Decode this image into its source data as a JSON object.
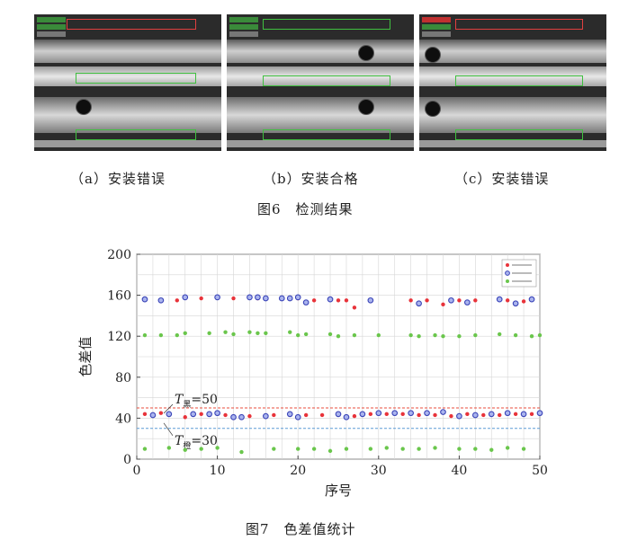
{
  "figure6": {
    "captions": [
      "（a）安装错误",
      "（b）安装合格",
      "（c）安装错误"
    ],
    "title": "图6　检测结果",
    "panels": [
      {
        "holes": [
          [
            "top",
            0
          ],
          [
            "lower",
            1
          ]
        ],
        "status": "error"
      },
      {
        "holes": [
          [
            "upper",
            1
          ],
          [
            "lower",
            1
          ]
        ],
        "status": "ok"
      },
      {
        "holes": [
          [
            "upper",
            0
          ],
          [
            "lower",
            0
          ]
        ],
        "status": "error"
      }
    ]
  },
  "chart_data": {
    "type": "scatter",
    "xlabel": "序号",
    "ylabel": "色差值",
    "xlim": [
      0,
      50
    ],
    "ylim": [
      0,
      200
    ],
    "xticks": [
      0,
      10,
      20,
      30,
      40,
      50
    ],
    "yticks": [
      0,
      40,
      80,
      120,
      160,
      200
    ],
    "grid": true,
    "legend_position": "top-right",
    "thresholds": [
      {
        "label_sym": "T",
        "label_sub": "黑",
        "label_val": "=50",
        "value": 50,
        "color": "#e84d3c"
      },
      {
        "label_sym": "T",
        "label_sub": "橙",
        "label_val": "=30",
        "value": 30,
        "color": "#5b9bd5"
      }
    ],
    "series": [
      {
        "name": "",
        "color": "#e8333a",
        "marker": "dot",
        "points": [
          [
            5,
            155
          ],
          [
            8,
            157
          ],
          [
            12,
            157
          ],
          [
            15,
            157
          ],
          [
            20,
            157
          ],
          [
            22,
            155
          ],
          [
            25,
            155
          ],
          [
            26,
            155
          ],
          [
            27,
            148
          ],
          [
            29,
            155
          ],
          [
            34,
            155
          ],
          [
            36,
            155
          ],
          [
            38,
            151
          ],
          [
            40,
            155
          ],
          [
            42,
            155
          ],
          [
            46,
            155
          ],
          [
            48,
            154
          ],
          [
            1,
            44
          ],
          [
            3,
            45
          ],
          [
            6,
            41
          ],
          [
            8,
            44
          ],
          [
            11,
            43
          ],
          [
            14,
            42
          ],
          [
            17,
            43
          ],
          [
            21,
            43
          ],
          [
            23,
            43
          ],
          [
            27,
            42
          ],
          [
            29,
            44
          ],
          [
            31,
            44
          ],
          [
            33,
            44
          ],
          [
            35,
            43
          ],
          [
            37,
            43
          ],
          [
            39,
            42
          ],
          [
            41,
            44
          ],
          [
            43,
            43
          ],
          [
            45,
            43
          ],
          [
            47,
            44
          ],
          [
            49,
            44
          ]
        ]
      },
      {
        "name": "",
        "color": "#3b45b8",
        "marker": "circle",
        "points": [
          [
            1,
            156
          ],
          [
            3,
            155
          ],
          [
            6,
            158
          ],
          [
            10,
            158
          ],
          [
            14,
            158
          ],
          [
            15,
            158
          ],
          [
            16,
            157
          ],
          [
            18,
            157
          ],
          [
            19,
            157
          ],
          [
            20,
            158
          ],
          [
            21,
            153
          ],
          [
            24,
            156
          ],
          [
            29,
            155
          ],
          [
            35,
            152
          ],
          [
            39,
            155
          ],
          [
            41,
            153
          ],
          [
            45,
            156
          ],
          [
            47,
            152
          ],
          [
            49,
            156
          ],
          [
            2,
            43
          ],
          [
            4,
            44
          ],
          [
            7,
            44
          ],
          [
            9,
            44
          ],
          [
            10,
            45
          ],
          [
            12,
            41
          ],
          [
            13,
            41
          ],
          [
            16,
            42
          ],
          [
            19,
            44
          ],
          [
            20,
            41
          ],
          [
            25,
            44
          ],
          [
            26,
            41
          ],
          [
            28,
            44
          ],
          [
            30,
            45
          ],
          [
            32,
            45
          ],
          [
            34,
            45
          ],
          [
            36,
            45
          ],
          [
            38,
            46
          ],
          [
            40,
            42
          ],
          [
            42,
            43
          ],
          [
            44,
            44
          ],
          [
            46,
            45
          ],
          [
            48,
            44
          ],
          [
            50,
            45
          ]
        ]
      },
      {
        "name": "",
        "color": "#6ac64c",
        "marker": "dot",
        "points": [
          [
            1,
            121
          ],
          [
            3,
            121
          ],
          [
            5,
            121
          ],
          [
            6,
            123
          ],
          [
            9,
            123
          ],
          [
            11,
            124
          ],
          [
            12,
            122
          ],
          [
            14,
            124
          ],
          [
            15,
            123
          ],
          [
            16,
            123
          ],
          [
            19,
            124
          ],
          [
            20,
            121
          ],
          [
            21,
            122
          ],
          [
            24,
            122
          ],
          [
            25,
            120
          ],
          [
            27,
            121
          ],
          [
            30,
            121
          ],
          [
            34,
            121
          ],
          [
            35,
            120
          ],
          [
            37,
            121
          ],
          [
            38,
            120
          ],
          [
            40,
            120
          ],
          [
            42,
            121
          ],
          [
            45,
            122
          ],
          [
            47,
            121
          ],
          [
            49,
            120
          ],
          [
            50,
            121
          ],
          [
            1,
            10
          ],
          [
            4,
            11
          ],
          [
            6,
            9
          ],
          [
            8,
            10
          ],
          [
            10,
            11
          ],
          [
            13,
            7
          ],
          [
            17,
            10
          ],
          [
            20,
            10
          ],
          [
            22,
            10
          ],
          [
            24,
            8
          ],
          [
            26,
            10
          ],
          [
            29,
            10
          ],
          [
            31,
            11
          ],
          [
            33,
            10
          ],
          [
            35,
            10
          ],
          [
            37,
            11
          ],
          [
            40,
            10
          ],
          [
            42,
            10
          ],
          [
            44,
            9
          ],
          [
            46,
            11
          ],
          [
            48,
            10
          ]
        ]
      }
    ]
  },
  "figure7": {
    "title": "图7　色差值统计"
  }
}
